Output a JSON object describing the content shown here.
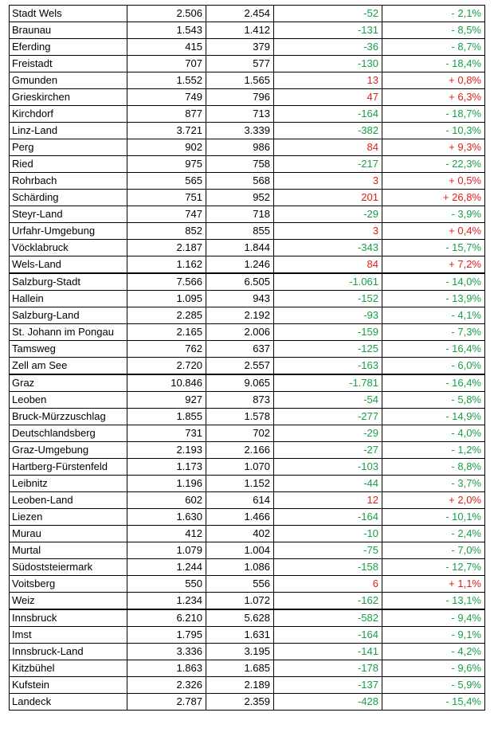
{
  "rows": [
    {
      "name": "Stadt Wels",
      "a": "2.506",
      "b": "2.454",
      "diff": "-52",
      "pct": "- 2,1%"
    },
    {
      "name": "Braunau",
      "a": "1.543",
      "b": "1.412",
      "diff": "-131",
      "pct": "- 8,5%"
    },
    {
      "name": "Eferding",
      "a": "415",
      "b": "379",
      "diff": "-36",
      "pct": "- 8,7%"
    },
    {
      "name": "Freistadt",
      "a": "707",
      "b": "577",
      "diff": "-130",
      "pct": "- 18,4%"
    },
    {
      "name": "Gmunden",
      "a": "1.552",
      "b": "1.565",
      "diff": "13",
      "pct": "+ 0,8%"
    },
    {
      "name": "Grieskirchen",
      "a": "749",
      "b": "796",
      "diff": "47",
      "pct": "+ 6,3%"
    },
    {
      "name": "Kirchdorf",
      "a": "877",
      "b": "713",
      "diff": "-164",
      "pct": "- 18,7%"
    },
    {
      "name": "Linz-Land",
      "a": "3.721",
      "b": "3.339",
      "diff": "-382",
      "pct": "- 10,3%"
    },
    {
      "name": "Perg",
      "a": "902",
      "b": "986",
      "diff": "84",
      "pct": "+ 9,3%"
    },
    {
      "name": "Ried",
      "a": "975",
      "b": "758",
      "diff": "-217",
      "pct": "- 22,3%"
    },
    {
      "name": "Rohrbach",
      "a": "565",
      "b": "568",
      "diff": "3",
      "pct": "+ 0,5%"
    },
    {
      "name": "Schärding",
      "a": "751",
      "b": "952",
      "diff": "201",
      "pct": "+ 26,8%"
    },
    {
      "name": "Steyr-Land",
      "a": "747",
      "b": "718",
      "diff": "-29",
      "pct": "- 3,9%"
    },
    {
      "name": "Urfahr-Umgebung",
      "a": "852",
      "b": "855",
      "diff": "3",
      "pct": "+ 0,4%"
    },
    {
      "name": "Vöcklabruck",
      "a": "2.187",
      "b": "1.844",
      "diff": "-343",
      "pct": "- 15,7%"
    },
    {
      "name": "Wels-Land",
      "a": "1.162",
      "b": "1.246",
      "diff": "84",
      "pct": "+ 7,2%"
    },
    {
      "name": "Salzburg-Stadt",
      "a": "7.566",
      "b": "6.505",
      "diff": "-1.061",
      "pct": "- 14,0%",
      "group_start": true
    },
    {
      "name": "Hallein",
      "a": "1.095",
      "b": "943",
      "diff": "-152",
      "pct": "- 13,9%"
    },
    {
      "name": "Salzburg-Land",
      "a": "2.285",
      "b": "2.192",
      "diff": "-93",
      "pct": "- 4,1%"
    },
    {
      "name": "St. Johann im Pongau",
      "a": "2.165",
      "b": "2.006",
      "diff": "-159",
      "pct": "- 7,3%"
    },
    {
      "name": "Tamsweg",
      "a": "762",
      "b": "637",
      "diff": "-125",
      "pct": "- 16,4%"
    },
    {
      "name": "Zell am See",
      "a": "2.720",
      "b": "2.557",
      "diff": "-163",
      "pct": "- 6,0%"
    },
    {
      "name": "Graz",
      "a": "10.846",
      "b": "9.065",
      "diff": "-1.781",
      "pct": "- 16,4%",
      "group_start": true
    },
    {
      "name": "Leoben",
      "a": "927",
      "b": "873",
      "diff": "-54",
      "pct": "- 5,8%"
    },
    {
      "name": "Bruck-Mürzzuschlag",
      "a": "1.855",
      "b": "1.578",
      "diff": "-277",
      "pct": "- 14,9%"
    },
    {
      "name": "Deutschlandsberg",
      "a": "731",
      "b": "702",
      "diff": "-29",
      "pct": "- 4,0%"
    },
    {
      "name": "Graz-Umgebung",
      "a": "2.193",
      "b": "2.166",
      "diff": "-27",
      "pct": "- 1,2%"
    },
    {
      "name": "Hartberg-Fürstenfeld",
      "a": "1.173",
      "b": "1.070",
      "diff": "-103",
      "pct": "- 8,8%"
    },
    {
      "name": "Leibnitz",
      "a": "1.196",
      "b": "1.152",
      "diff": "-44",
      "pct": "- 3,7%"
    },
    {
      "name": "Leoben-Land",
      "a": "602",
      "b": "614",
      "diff": "12",
      "pct": "+ 2,0%"
    },
    {
      "name": "Liezen",
      "a": "1.630",
      "b": "1.466",
      "diff": "-164",
      "pct": "- 10,1%"
    },
    {
      "name": "Murau",
      "a": "412",
      "b": "402",
      "diff": "-10",
      "pct": "- 2,4%"
    },
    {
      "name": "Murtal",
      "a": "1.079",
      "b": "1.004",
      "diff": "-75",
      "pct": "- 7,0%"
    },
    {
      "name": "Südoststeiermark",
      "a": "1.244",
      "b": "1.086",
      "diff": "-158",
      "pct": "- 12,7%"
    },
    {
      "name": "Voitsberg",
      "a": "550",
      "b": "556",
      "diff": "6",
      "pct": "+ 1,1%"
    },
    {
      "name": "Weiz",
      "a": "1.234",
      "b": "1.072",
      "diff": "-162",
      "pct": "- 13,1%"
    },
    {
      "name": "Innsbruck",
      "a": "6.210",
      "b": "5.628",
      "diff": "-582",
      "pct": "- 9,4%",
      "group_start": true
    },
    {
      "name": "Imst",
      "a": "1.795",
      "b": "1.631",
      "diff": "-164",
      "pct": "- 9,1%"
    },
    {
      "name": "Innsbruck-Land",
      "a": "3.336",
      "b": "3.195",
      "diff": "-141",
      "pct": "- 4,2%"
    },
    {
      "name": "Kitzbühel",
      "a": "1.863",
      "b": "1.685",
      "diff": "-178",
      "pct": "- 9,6%"
    },
    {
      "name": "Kufstein",
      "a": "2.326",
      "b": "2.189",
      "diff": "-137",
      "pct": "- 5,9%"
    },
    {
      "name": "Landeck",
      "a": "2.787",
      "b": "2.359",
      "diff": "-428",
      "pct": "- 15,4%"
    }
  ],
  "colors": {
    "positive": "#e0201b",
    "negative": "#18a045",
    "text": "#000000"
  }
}
